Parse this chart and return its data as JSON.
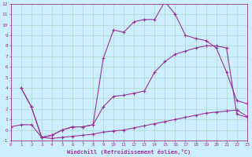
{
  "xlabel": "Windchill (Refroidissement éolien,°C)",
  "bg_color": "#cceeff",
  "grid_color": "#b0d8cc",
  "line_color": "#993399",
  "xmin": 0,
  "xmax": 23,
  "ymin": -1,
  "ymax": 12,
  "line1_x": [
    1,
    2,
    3,
    4,
    5,
    6,
    7,
    8,
    9,
    10,
    11,
    12,
    13,
    14,
    15,
    16,
    17,
    18,
    19,
    20,
    21,
    22,
    23
  ],
  "line1_y": [
    4.0,
    2.2,
    -0.7,
    -0.5,
    0.0,
    0.3,
    0.3,
    0.5,
    6.8,
    9.5,
    9.3,
    10.3,
    10.5,
    10.5,
    12.2,
    11.0,
    9.0,
    8.7,
    8.5,
    7.8,
    5.5,
    2.8,
    2.5
  ],
  "line2_x": [
    1,
    2,
    3,
    4,
    5,
    6,
    7,
    8,
    9,
    10,
    11,
    12,
    13,
    14,
    15,
    16,
    17,
    18,
    19,
    20,
    21,
    22,
    23
  ],
  "line2_y": [
    4.0,
    2.2,
    -0.7,
    -0.5,
    0.0,
    0.3,
    0.3,
    0.5,
    2.2,
    3.2,
    3.3,
    3.5,
    3.7,
    5.5,
    6.5,
    7.2,
    7.5,
    7.8,
    8.0,
    8.0,
    7.8,
    1.5,
    1.2
  ],
  "line3_x": [
    0,
    1,
    2,
    3,
    4,
    5,
    6,
    7,
    8,
    9,
    10,
    11,
    12,
    13,
    14,
    15,
    16,
    17,
    18,
    19,
    20,
    21,
    22,
    23
  ],
  "line3_y": [
    0.3,
    0.5,
    0.5,
    -0.7,
    -0.8,
    -0.7,
    -0.6,
    -0.5,
    -0.4,
    -0.2,
    -0.1,
    0.0,
    0.2,
    0.4,
    0.6,
    0.8,
    1.0,
    1.2,
    1.4,
    1.6,
    1.7,
    1.8,
    1.9,
    1.3
  ]
}
